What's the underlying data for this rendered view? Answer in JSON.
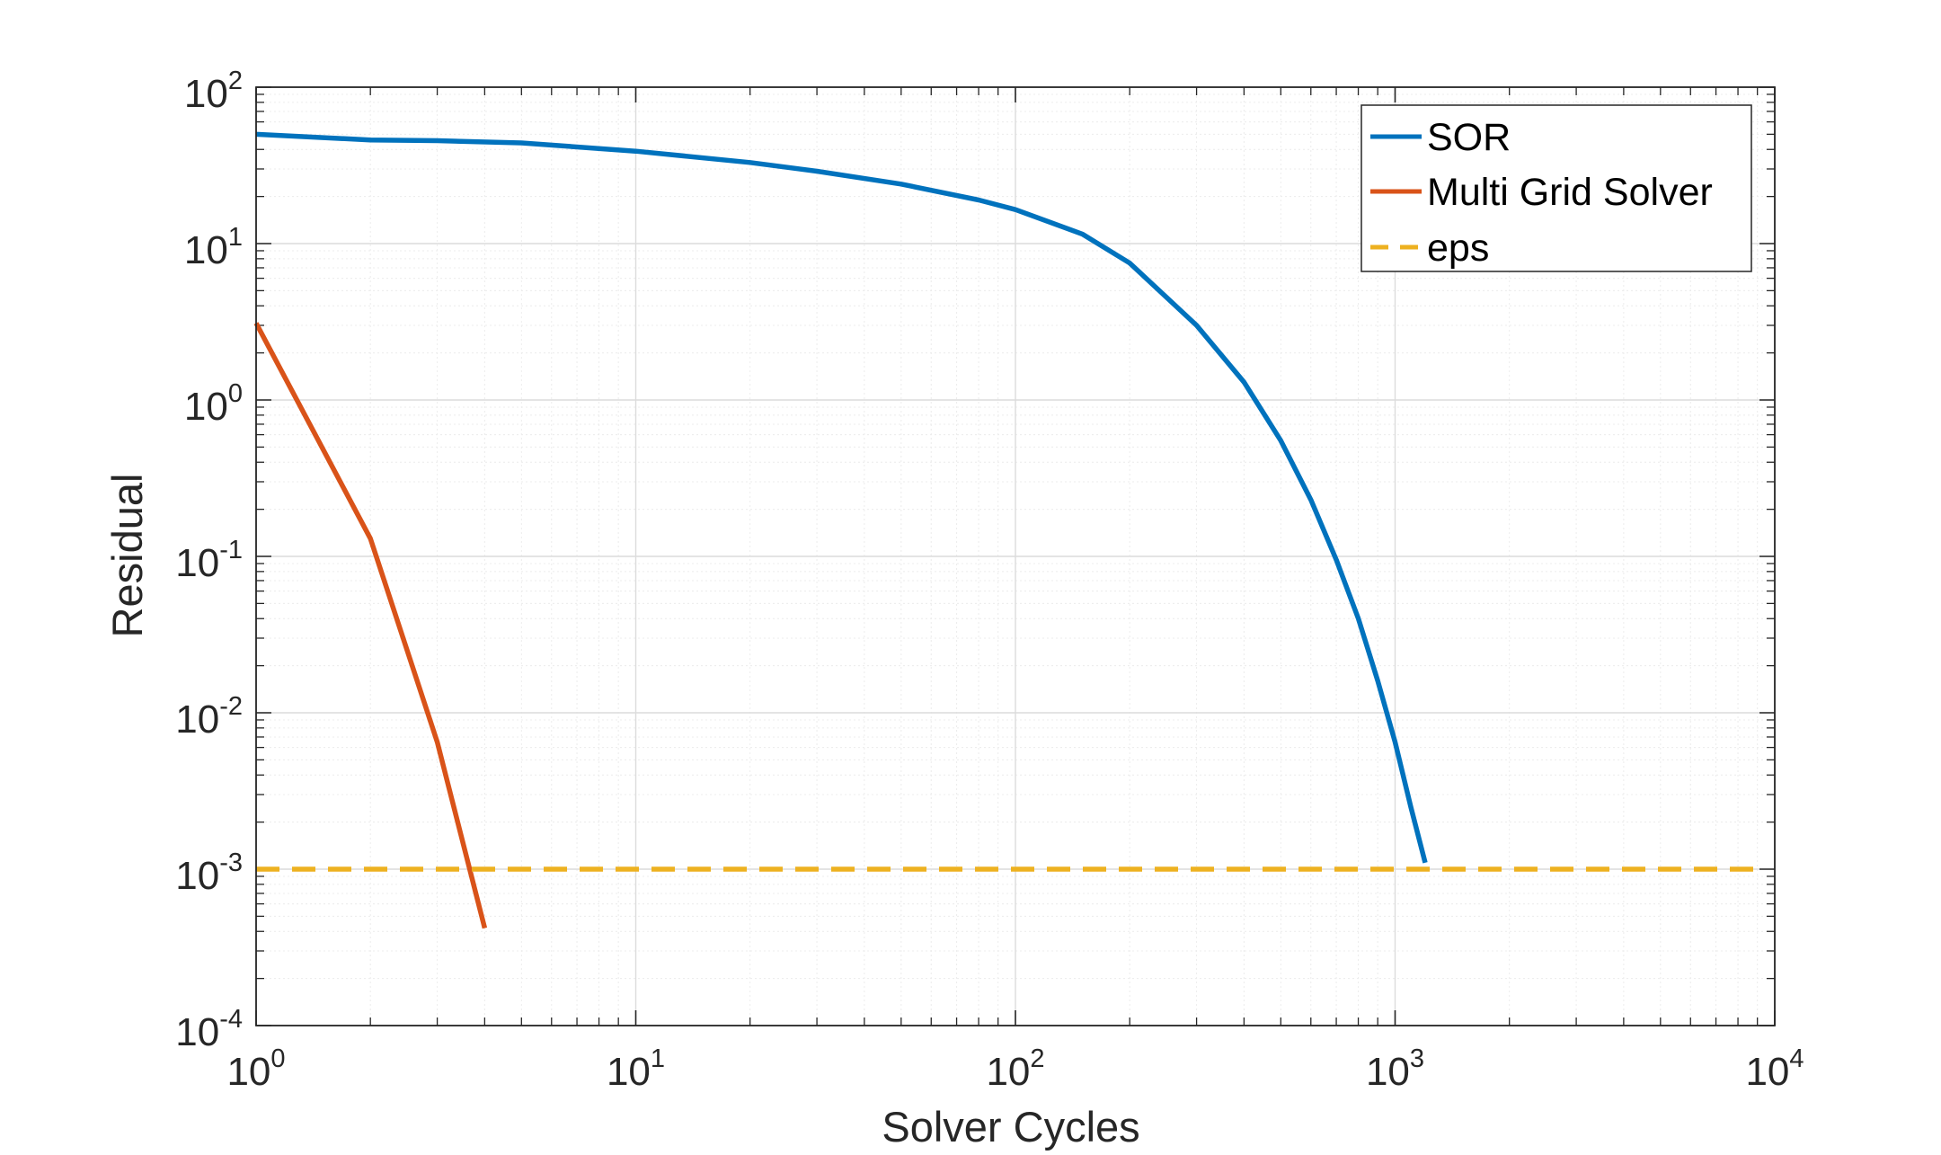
{
  "chart_data": {
    "type": "line",
    "title": "",
    "xlabel": "Solver Cycles",
    "ylabel": "Residual",
    "xscale": "log",
    "yscale": "log",
    "xlim": [
      1,
      10000
    ],
    "ylim": [
      0.0001,
      100
    ],
    "x_ticks": [
      {
        "base": "10",
        "exp": "0",
        "value": 1
      },
      {
        "base": "10",
        "exp": "1",
        "value": 10
      },
      {
        "base": "10",
        "exp": "2",
        "value": 100
      },
      {
        "base": "10",
        "exp": "3",
        "value": 1000
      },
      {
        "base": "10",
        "exp": "4",
        "value": 10000
      }
    ],
    "y_ticks": [
      {
        "base": "10",
        "exp": "-4",
        "value": 0.0001
      },
      {
        "base": "10",
        "exp": "-3",
        "value": 0.001
      },
      {
        "base": "10",
        "exp": "-2",
        "value": 0.01
      },
      {
        "base": "10",
        "exp": "-1",
        "value": 0.1
      },
      {
        "base": "10",
        "exp": "0",
        "value": 1
      },
      {
        "base": "10",
        "exp": "1",
        "value": 10
      },
      {
        "base": "10",
        "exp": "2",
        "value": 100
      }
    ],
    "grid": true,
    "minor_grid": true,
    "legend_position": "top-right",
    "series": [
      {
        "name": "SOR",
        "color": "#0072BD",
        "style": "solid",
        "x": [
          1,
          2,
          3,
          5,
          10,
          20,
          30,
          50,
          80,
          100,
          150,
          200,
          300,
          400,
          500,
          600,
          700,
          800,
          900,
          1000,
          1100,
          1200
        ],
        "y": [
          50,
          46,
          45.5,
          44,
          39,
          33,
          29,
          24,
          19,
          16.5,
          11.5,
          7.5,
          3.0,
          1.3,
          0.55,
          0.23,
          0.095,
          0.04,
          0.016,
          0.0065,
          0.0025,
          0.0011
        ]
      },
      {
        "name": "Multi Grid Solver",
        "color": "#D95319",
        "style": "solid",
        "x": [
          1,
          2,
          3,
          4
        ],
        "y": [
          3.1,
          0.13,
          0.0065,
          0.00042
        ]
      },
      {
        "name": "eps",
        "color": "#EDB120",
        "style": "dashed",
        "x": [
          1,
          9000
        ],
        "y": [
          0.001,
          0.001
        ]
      }
    ]
  }
}
